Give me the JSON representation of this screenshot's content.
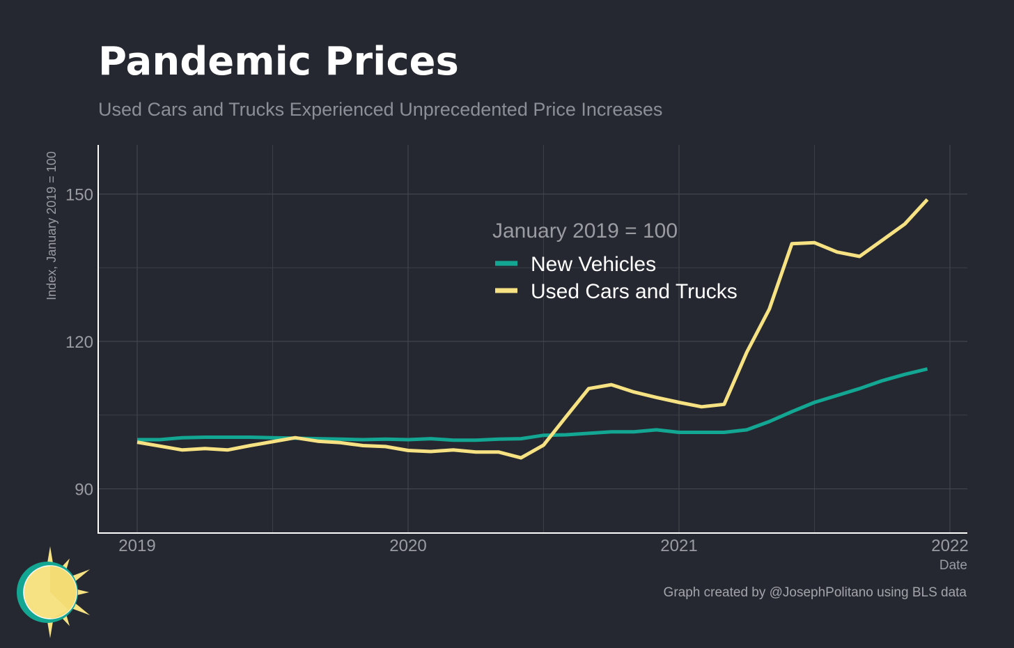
{
  "title": "Pandemic Prices",
  "subtitle": "Used Cars and Trucks Experienced Unprecedented Price Increases",
  "caption": "Graph created by @JosephPolitano using BLS data",
  "colors": {
    "background": "#252830",
    "new_vehicles": "#13a793",
    "used_cars": "#f7e283",
    "grid": "#42454c",
    "axis": "#ffffff",
    "muted_text": "#9a9ca2"
  },
  "chart_data": {
    "type": "line",
    "xlabel": "Date",
    "ylabel": "Index, January 2019 = 100",
    "x_ticks": [
      "2019",
      "2020",
      "2021",
      "2022"
    ],
    "y_ticks": [
      90,
      120,
      150
    ],
    "ylim": [
      81,
      160
    ],
    "legend_title": "January 2019 = 100",
    "legend_position": "top-right",
    "grid": true,
    "x": [
      "2019-01",
      "2019-02",
      "2019-03",
      "2019-04",
      "2019-05",
      "2019-06",
      "2019-07",
      "2019-08",
      "2019-09",
      "2019-10",
      "2019-11",
      "2019-12",
      "2020-01",
      "2020-02",
      "2020-03",
      "2020-04",
      "2020-05",
      "2020-06",
      "2020-07",
      "2020-08",
      "2020-09",
      "2020-10",
      "2020-11",
      "2020-12",
      "2021-01",
      "2021-02",
      "2021-03",
      "2021-04",
      "2021-05",
      "2021-06",
      "2021-07",
      "2021-08",
      "2021-09",
      "2021-10",
      "2021-11",
      "2021-12"
    ],
    "series": [
      {
        "name": "New Vehicles",
        "color": "#13a793",
        "values": [
          100.0,
          100.0,
          100.4,
          100.5,
          100.5,
          100.5,
          100.4,
          100.3,
          100.2,
          100.1,
          100.0,
          100.1,
          100.0,
          100.2,
          99.9,
          99.9,
          100.1,
          100.2,
          100.9,
          101.0,
          101.3,
          101.6,
          101.6,
          102.0,
          101.5,
          101.5,
          101.5,
          102.0,
          103.7,
          105.7,
          107.6,
          109.0,
          110.4,
          112.0,
          113.3,
          114.4
        ]
      },
      {
        "name": "Used Cars and Trucks",
        "color": "#f7e283",
        "values": [
          99.5,
          98.7,
          97.9,
          98.2,
          97.9,
          98.8,
          99.6,
          100.4,
          99.7,
          99.4,
          98.8,
          98.6,
          97.8,
          97.6,
          97.9,
          97.5,
          97.5,
          96.3,
          98.9,
          104.7,
          110.4,
          111.2,
          109.7,
          108.6,
          107.6,
          106.7,
          107.2,
          117.8,
          126.6,
          139.9,
          140.1,
          138.2,
          137.3,
          140.6,
          143.9,
          148.9
        ]
      }
    ]
  }
}
